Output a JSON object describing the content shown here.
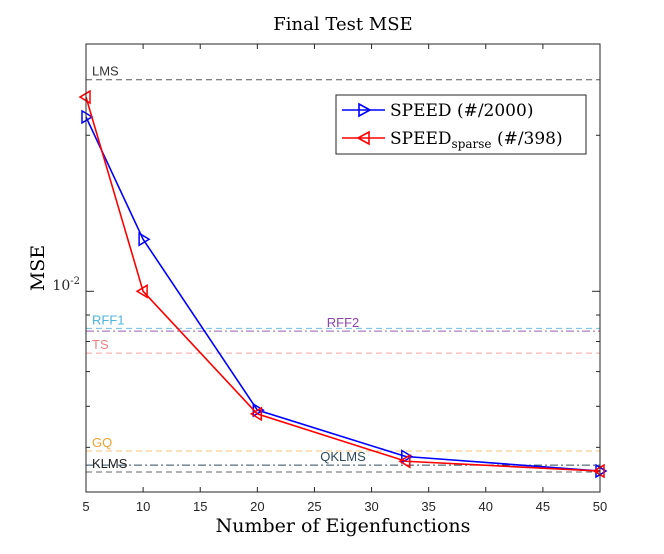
{
  "chart_data": {
    "type": "line",
    "title": "Final Test MSE",
    "xlabel": "Number of Eigenfunctions",
    "ylabel": "MSE",
    "yscale": "log",
    "xlim": [
      5,
      50
    ],
    "ylim": [
      0.0041,
      0.03
    ],
    "xticks": [
      5,
      10,
      15,
      20,
      25,
      30,
      35,
      40,
      45,
      50
    ],
    "xtick_labels": [
      "5",
      "10",
      "15",
      "20",
      "25",
      "30",
      "35",
      "40",
      "45",
      "50"
    ],
    "ytick_label": {
      "base": "10",
      "exponent": "-2",
      "value": 0.01
    },
    "series": [
      {
        "name": "SPEED (#/2000)",
        "color": "#0000ff",
        "marker": "triangle-right",
        "x": [
          5,
          10,
          20,
          33,
          50
        ],
        "values": [
          0.0217,
          0.0126,
          0.0059,
          0.0048,
          0.0045
        ]
      },
      {
        "name": "SPEED_sparse (#/398)",
        "color": "#ff0000",
        "marker": "triangle-left",
        "x": [
          5,
          10,
          20,
          33,
          50
        ],
        "values": [
          0.0237,
          0.01,
          0.0058,
          0.0047,
          0.0045
        ]
      }
    ],
    "legend": {
      "location": "top-right",
      "entries": [
        {
          "base": "SPEED",
          "sub": "",
          "suffix": " (#/2000)"
        },
        {
          "base": "SPEED",
          "sub": "sparse",
          "suffix": " (#/398)"
        }
      ]
    },
    "reference_lines": [
      {
        "label": "LMS",
        "value": 0.0256,
        "color": "#555555",
        "label_color": "#333333",
        "dash": "dashed",
        "label_anchor": "left"
      },
      {
        "label": "RFF1",
        "value": 0.00848,
        "color": "#6fc0e0",
        "label_color": "#4db3df",
        "dash": "dashed",
        "label_anchor": "left"
      },
      {
        "label": "RFF2",
        "value": 0.00838,
        "color": "#9a5fb0",
        "label_color": "#8e44ad",
        "dash": "dashdot",
        "label_anchor": "center"
      },
      {
        "label": "TS",
        "value": 0.0076,
        "color": "#f5a5a5",
        "label_color": "#f08080",
        "dash": "dashed",
        "label_anchor": "left"
      },
      {
        "label": "GQ",
        "value": 0.00492,
        "color": "#f5c27a",
        "label_color": "#f0a030",
        "dash": "dashed",
        "label_anchor": "left"
      },
      {
        "label": "QKLMS",
        "value": 0.00462,
        "color": "#2e4a5a",
        "label_color": "#2c4a5e",
        "dash": "dashdot",
        "label_anchor": "center"
      },
      {
        "label": "KLMS",
        "value": 0.00448,
        "color": "#666666",
        "label_color": "#222222",
        "dash": "dashed",
        "label_anchor": "left"
      }
    ]
  }
}
